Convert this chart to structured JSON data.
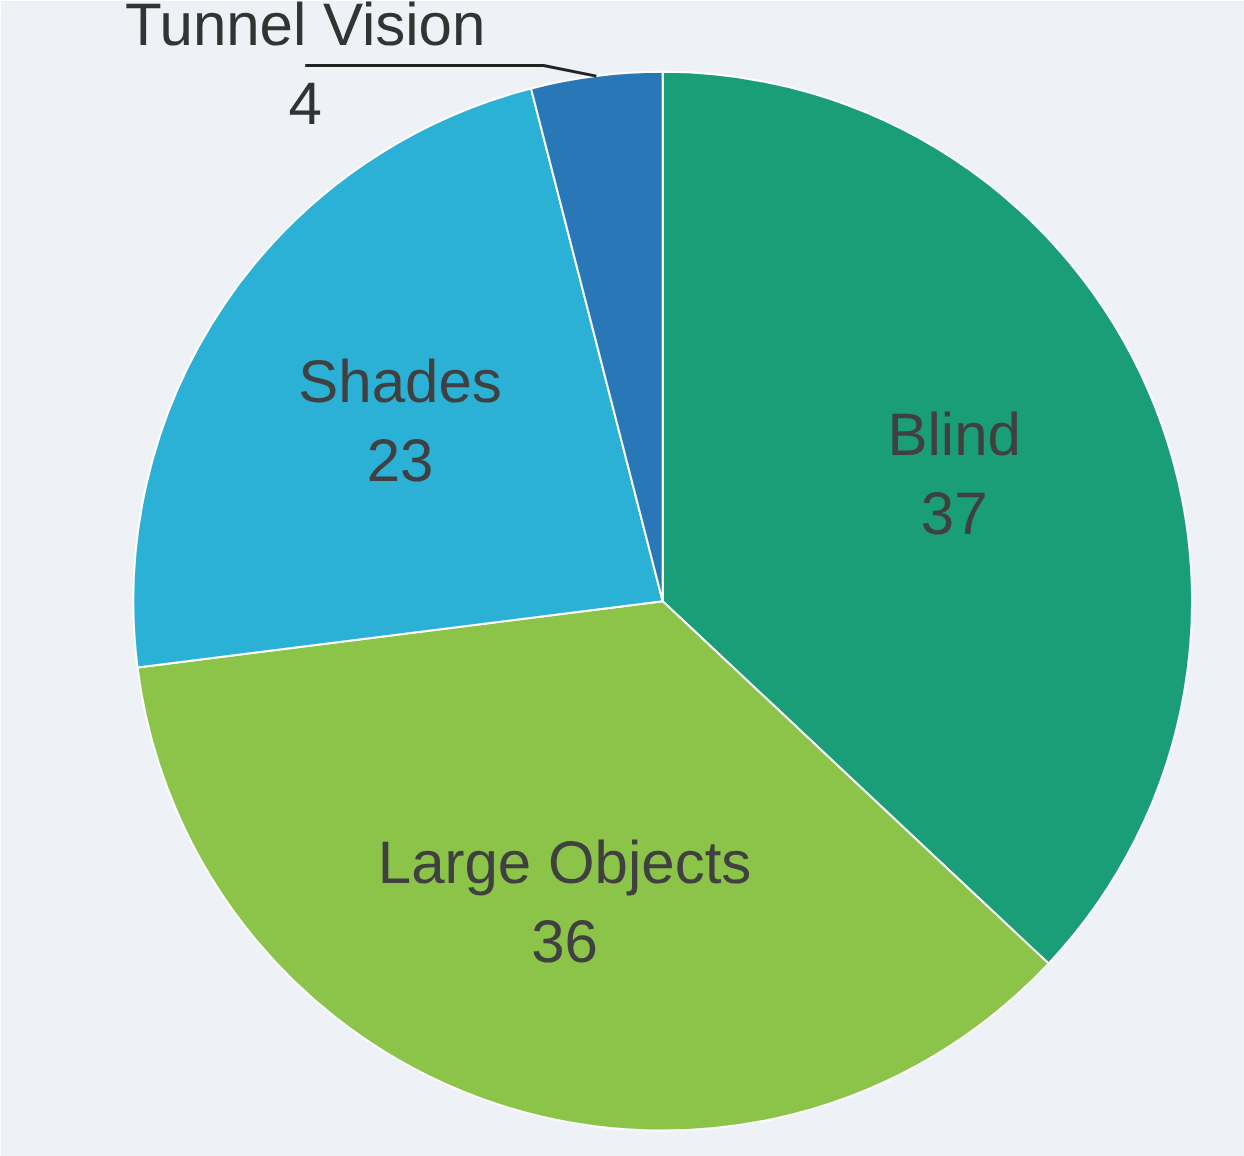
{
  "chart_data": {
    "type": "pie",
    "categories": [
      "Blind",
      "Large Objects",
      "Shades",
      "Tunnel Vision"
    ],
    "values": [
      37,
      36,
      23,
      4
    ],
    "colors": [
      "#1a9e78",
      "#8cc44a",
      "#2bb0d6",
      "#2a77b8"
    ],
    "data_labels": true
  }
}
